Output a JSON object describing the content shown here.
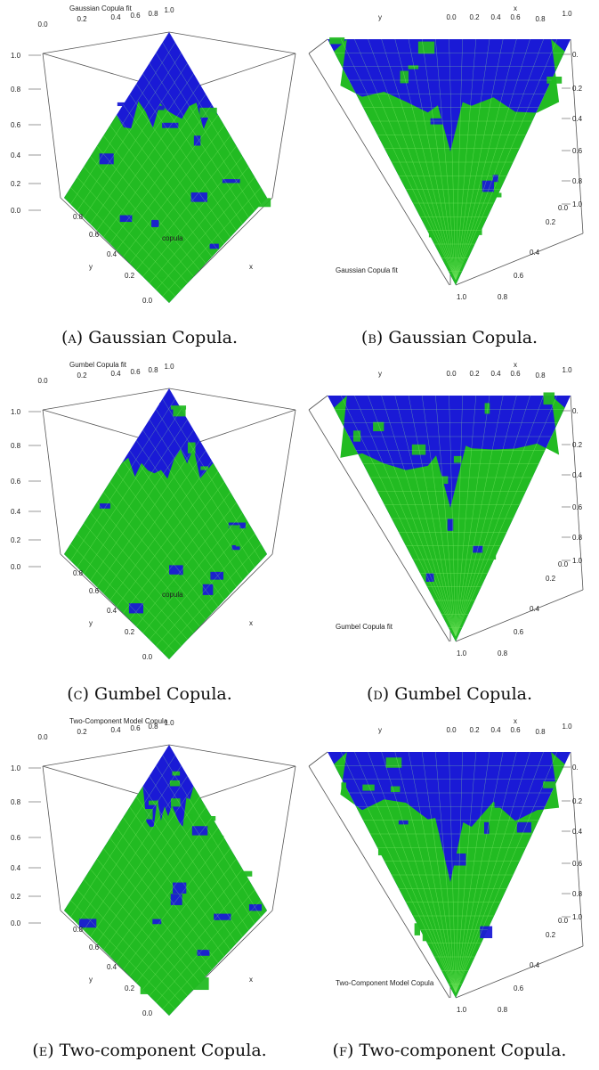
{
  "colors": {
    "surface_high": "#1a1ad6",
    "surface_low": "#22bb22",
    "mesh": "#aaff88",
    "box": "#555555"
  },
  "figure": {
    "panels": [
      {
        "id": "a",
        "label": "(a)",
        "caption": "Gaussian Copula.",
        "plot_title": "Gaussian Copula fit",
        "view": "top",
        "zlabel": "copula",
        "xlabel": "x",
        "ylabel": "y"
      },
      {
        "id": "b",
        "label": "(b)",
        "caption": "Gaussian Copula.",
        "plot_title": "Gaussian Copula fit",
        "view": "bottom",
        "zlabel": "",
        "xlabel": "x",
        "ylabel": "y"
      },
      {
        "id": "c",
        "label": "(c)",
        "caption": "Gumbel Copula.",
        "plot_title": "Gumbel Copula fit",
        "view": "top",
        "zlabel": "copula",
        "xlabel": "x",
        "ylabel": "y"
      },
      {
        "id": "d",
        "label": "(d)",
        "caption": "Gumbel Copula.",
        "plot_title": "Gumbel Copula fit",
        "view": "bottom",
        "zlabel": "",
        "xlabel": "x",
        "ylabel": "y"
      },
      {
        "id": "e",
        "label": "(e)",
        "caption": "Two-component Copula.",
        "plot_title": "Two-Component Model Copula",
        "view": "top",
        "zlabel": "",
        "xlabel": "x",
        "ylabel": "y"
      },
      {
        "id": "f",
        "label": "(f)",
        "caption": "Two-component Copula.",
        "plot_title": "Two-Component Model Copula",
        "view": "bottom",
        "zlabel": "",
        "xlabel": "x",
        "ylabel": "y"
      }
    ]
  },
  "chart_data": [
    {
      "type": "surface",
      "title": "Gaussian Copula fit",
      "xlabel": "x",
      "ylabel": "y",
      "zlabel": "copula",
      "xlim": [
        0,
        1
      ],
      "ylim": [
        0,
        1
      ],
      "zlim": [
        0,
        1
      ],
      "ticks": [
        "0.0",
        "0.2",
        "0.4",
        "0.6",
        "0.8",
        "1.0"
      ]
    },
    {
      "type": "surface",
      "title": "Gaussian Copula fit",
      "xlabel": "x",
      "ylabel": "y",
      "zlim": [
        0,
        1
      ],
      "ticks": [
        "0.0",
        "0.2",
        "0.4",
        "0.6",
        "0.8",
        "1.0"
      ]
    },
    {
      "type": "surface",
      "title": "Gumbel Copula fit",
      "xlabel": "x",
      "ylabel": "y",
      "zlabel": "copula",
      "xlim": [
        0,
        1
      ],
      "ylim": [
        0,
        1
      ],
      "zlim": [
        0,
        1
      ],
      "ticks": [
        "0.0",
        "0.2",
        "0.4",
        "0.6",
        "0.8",
        "1.0"
      ]
    },
    {
      "type": "surface",
      "title": "Gumbel Copula fit",
      "xlabel": "x",
      "ylabel": "y",
      "zlim": [
        0,
        1
      ],
      "ticks": [
        "0.0",
        "0.2",
        "0.4",
        "0.6",
        "0.8",
        "1.0"
      ]
    },
    {
      "type": "surface",
      "title": "Two-Component Model Copula",
      "xlabel": "x",
      "ylabel": "y",
      "xlim": [
        0,
        1
      ],
      "ylim": [
        0,
        1
      ],
      "zlim": [
        0,
        1
      ],
      "ticks": [
        "0.0",
        "0.2",
        "0.4",
        "0.6",
        "0.8",
        "1.0"
      ]
    },
    {
      "type": "surface",
      "title": "Two-Component Model Copula",
      "xlabel": "x",
      "ylabel": "y",
      "zlim": [
        0,
        1
      ],
      "ticks": [
        "0.0",
        "0.2",
        "0.4",
        "0.6",
        "0.8",
        "1.0"
      ]
    }
  ]
}
